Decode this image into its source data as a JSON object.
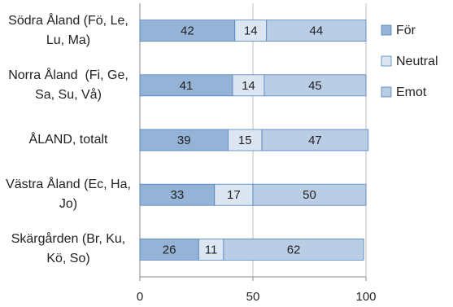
{
  "chart_data": {
    "type": "stacked-barh",
    "categories": [
      "Södra Åland (Fö, Le, Lu, Ma)",
      "Norra Åland  (Fi, Ge, Sa, Su, Vå)",
      "ÅLAND, totalt",
      "Västra Åland (Ec, Ha, Jo)",
      "Skärgården (Br, Ku, Kö, So)"
    ],
    "series": [
      {
        "name": "För",
        "color": "#95b3d7",
        "values": [
          42,
          41,
          39,
          33,
          26
        ]
      },
      {
        "name": "Neutral",
        "color": "#dce6f2",
        "values": [
          14,
          14,
          15,
          17,
          11
        ]
      },
      {
        "name": "Emot",
        "color": "#b9cde5",
        "values": [
          44,
          45,
          47,
          50,
          62
        ]
      }
    ],
    "xlim": [
      0,
      100
    ],
    "xticks": [
      0,
      50,
      100
    ],
    "grid": true,
    "legend": "right"
  }
}
